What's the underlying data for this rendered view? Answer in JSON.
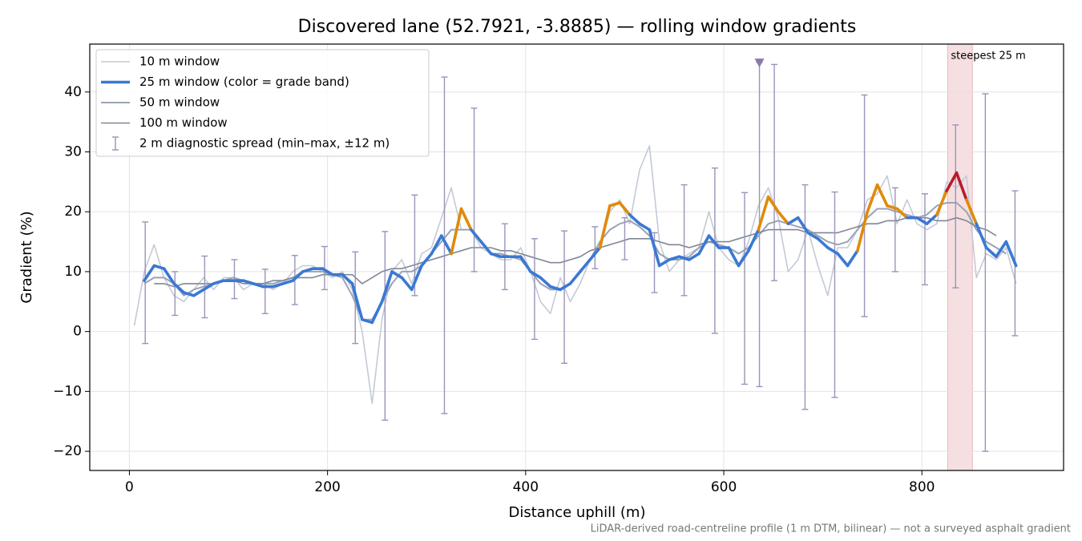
{
  "chart_data": {
    "type": "line",
    "title": "Discovered lane (52.7921, -3.8885) — rolling window gradients",
    "x_label": "Distance uphill (m)",
    "y_label": "Gradient (%)",
    "footnote": "LiDAR-derived road-centreline profile (1 m DTM, bilinear) — not a surveyed asphalt gradient",
    "xlim": [
      -40,
      943
    ],
    "ylim": [
      -23.2,
      48
    ],
    "xticks": [
      0,
      200,
      400,
      600,
      800
    ],
    "yticks": [
      {
        "value": -20,
        "label": "−20"
      },
      {
        "value": -10,
        "label": "−10"
      },
      0,
      10,
      20,
      30,
      40
    ],
    "grid": true,
    "legend": "upper-left",
    "x": [
      5,
      15,
      25,
      35,
      45,
      55,
      65,
      75,
      85,
      95,
      105,
      115,
      125,
      135,
      145,
      155,
      165,
      175,
      185,
      195,
      205,
      215,
      225,
      235,
      245,
      255,
      265,
      275,
      285,
      295,
      305,
      315,
      325,
      335,
      345,
      355,
      365,
      375,
      385,
      395,
      405,
      415,
      425,
      435,
      445,
      455,
      465,
      475,
      485,
      495,
      505,
      515,
      525,
      535,
      545,
      555,
      565,
      575,
      585,
      595,
      605,
      615,
      625,
      635,
      645,
      655,
      665,
      675,
      685,
      695,
      705,
      715,
      725,
      735,
      745,
      755,
      765,
      775,
      785,
      795,
      805,
      815,
      825,
      835,
      845,
      855,
      865,
      875,
      885,
      895
    ],
    "series": [
      {
        "name": "10 m window",
        "color": "#c3cad6",
        "width": 1.6,
        "values": [
          1,
          10,
          14.5,
          9,
          6,
          5,
          7,
          9,
          7,
          9,
          9,
          7,
          8,
          8,
          7,
          8,
          10,
          11,
          11,
          10,
          9,
          10,
          7,
          0,
          -12,
          2,
          10,
          12,
          8,
          13,
          14,
          19,
          24,
          17,
          17,
          14,
          13,
          12,
          12,
          14,
          10,
          5,
          3,
          9,
          5,
          8,
          12,
          14,
          20,
          22,
          18,
          27,
          31,
          15,
          10,
          12,
          13,
          14,
          20,
          14,
          12,
          11,
          15,
          21,
          24,
          19,
          10,
          12,
          17,
          11,
          6,
          14,
          14,
          17,
          22,
          23,
          26,
          18,
          22,
          18,
          17,
          18,
          25,
          24,
          26,
          9,
          13,
          12,
          14,
          8
        ]
      },
      {
        "name": "50 m window",
        "color": "#9aa3b3",
        "width": 2,
        "values": [
          null,
          8,
          9,
          9,
          8,
          6,
          7,
          7.5,
          8,
          8.5,
          9,
          8.5,
          8,
          8,
          8,
          8.5,
          9,
          10,
          10,
          10,
          9.5,
          9,
          6,
          2,
          2,
          5,
          8,
          10,
          10,
          11,
          13,
          15,
          17,
          17,
          17,
          15,
          13,
          13,
          12.5,
          12,
          10,
          8,
          7,
          7,
          8,
          10,
          12,
          15,
          17,
          18,
          18.5,
          17.5,
          16,
          13,
          12,
          12,
          12.5,
          14,
          15,
          14.5,
          14,
          13,
          14,
          16,
          18,
          18.5,
          18,
          17.5,
          17,
          16,
          15,
          14.5,
          15,
          17,
          19,
          20.5,
          20.5,
          20,
          19.5,
          19,
          19.5,
          21,
          21.5,
          21.5,
          20,
          17,
          15,
          14,
          13,
          null
        ]
      },
      {
        "name": "100 m window",
        "color": "#7f8796",
        "width": 1.6,
        "values": [
          null,
          null,
          8,
          8,
          7.5,
          8,
          8,
          8,
          8,
          8.5,
          8.5,
          8,
          8,
          8,
          8.5,
          8.5,
          9,
          9,
          9,
          9.5,
          9.5,
          9.5,
          9.5,
          8,
          9,
          10,
          10.5,
          10.5,
          11,
          11.5,
          12,
          12.5,
          13,
          13.5,
          14,
          14,
          14,
          13.5,
          13.5,
          13,
          12.5,
          12,
          11.5,
          11.5,
          12,
          12.5,
          13.5,
          14,
          14.5,
          15,
          15.5,
          15.5,
          15.5,
          15,
          14.5,
          14.5,
          14,
          14.5,
          15,
          15,
          15,
          15.5,
          16,
          16.5,
          17,
          17,
          17,
          17,
          16.5,
          16.5,
          16.5,
          16.5,
          17,
          17.5,
          18,
          18,
          18.5,
          18.5,
          19,
          19,
          19,
          18.5,
          18.5,
          19,
          18.5,
          17.5,
          17,
          16,
          null,
          null
        ]
      },
      {
        "name": "25 m window (color = grade band)",
        "color": "#3a78d4",
        "width": 3.6,
        "grade_bands": [
          {
            "max": 20,
            "color": "#3a78d4"
          },
          {
            "max": 25,
            "color": "#e08a0a"
          },
          {
            "color": "#b81c2b"
          }
        ],
        "values": [
          null,
          8.5,
          11,
          10.5,
          8,
          6.5,
          6,
          7,
          8,
          8.5,
          8.5,
          8.5,
          8,
          7.5,
          7.5,
          8,
          8.5,
          10,
          10.5,
          10.5,
          9.5,
          9.5,
          8,
          2,
          1.5,
          5,
          10,
          9,
          7,
          11,
          13,
          16,
          13,
          20.5,
          17,
          15,
          13,
          12.5,
          12.5,
          12.5,
          10,
          9,
          7.5,
          7,
          8,
          10,
          12,
          14,
          21,
          21.5,
          19.5,
          18,
          17,
          11,
          12,
          12.5,
          12,
          13,
          16,
          14,
          14,
          11,
          13.5,
          17,
          22.5,
          20,
          18,
          19,
          16.5,
          15.5,
          14,
          13,
          11,
          13.5,
          20,
          24.5,
          21,
          20.5,
          19,
          19,
          18,
          19.5,
          23.5,
          26.5,
          22,
          18,
          14,
          12.5,
          15,
          11
        ]
      }
    ],
    "errorbars": {
      "name": "2 m diagnostic spread (min–max, ±12 m)",
      "color": "#9a94b8",
      "x": [
        16,
        46,
        76,
        106,
        137,
        167,
        197,
        228,
        258,
        288,
        318,
        348,
        379,
        409,
        439,
        470,
        500,
        530,
        560,
        591,
        621,
        636,
        651,
        682,
        712,
        742,
        773,
        803,
        834,
        864,
        894
      ],
      "min": [
        -2,
        2.7,
        2.3,
        5.5,
        3,
        4.5,
        7,
        -2,
        -14.8,
        6,
        -13.7,
        10,
        7,
        -1.3,
        -5.3,
        10.5,
        12,
        6.5,
        6,
        -0.3,
        -8.8,
        -9.2,
        8.5,
        -13,
        -11,
        2.5,
        10,
        7.8,
        7.3,
        -20,
        -0.7
      ],
      "max": [
        18.3,
        10,
        12.6,
        12,
        10.4,
        12.7,
        14.2,
        13.3,
        16.7,
        22.8,
        42.5,
        37.3,
        18,
        15.5,
        16.8,
        17.5,
        19,
        16.5,
        24.5,
        27.3,
        23.2,
        44.9,
        44.6,
        24.5,
        23.3,
        39.5,
        24,
        23,
        34.5,
        39.7,
        23.5
      ]
    },
    "marker": {
      "x": 636,
      "y": 44.9,
      "color": "#8a7aa8"
    },
    "highlight": {
      "xlim": [
        826,
        851
      ],
      "label": "steepest 25 m",
      "color": "#b81c2b"
    }
  }
}
